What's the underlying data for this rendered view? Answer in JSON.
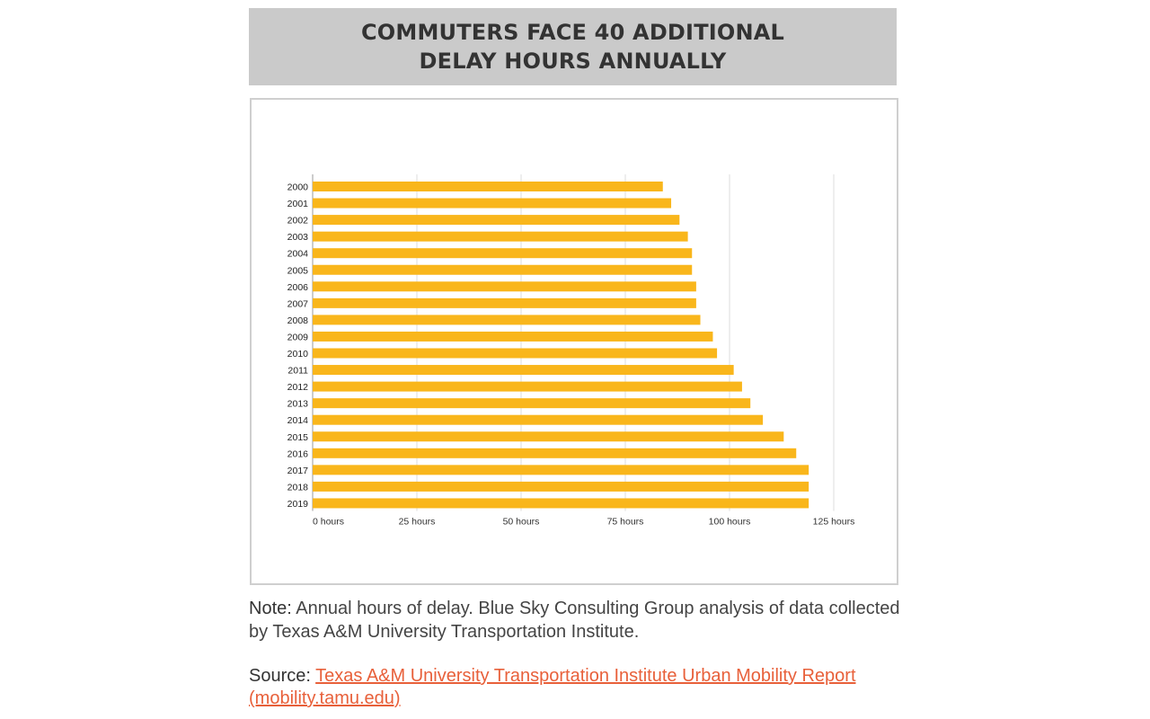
{
  "header": {
    "title_line1": "COMMUTERS FACE 40 ADDITIONAL",
    "title_line2": "DELAY HOURS ANNUALLY"
  },
  "note": {
    "label": "Note:",
    "text": "Annual hours of delay. Blue Sky Consulting Group analysis of data collected by Texas A&M University Transportation Institute."
  },
  "source": {
    "label": "Source:",
    "link_line1": "Texas A&M University Transportation Institute Urban Mobility Report ",
    "link_line2": "(mobility.tamu.edu)"
  },
  "colors": {
    "bar": "#f9b61b",
    "grid": "#dddddd",
    "axis": "#999999",
    "title_band": "#cacaca",
    "link": "#e8603a"
  },
  "chart_data": {
    "type": "bar",
    "orientation": "horizontal",
    "categories": [
      "2000",
      "2001",
      "2002",
      "2003",
      "2004",
      "2005",
      "2006",
      "2007",
      "2008",
      "2009",
      "2010",
      "2011",
      "2012",
      "2013",
      "2014",
      "2015",
      "2016",
      "2017",
      "2018",
      "2019"
    ],
    "values": [
      84,
      86,
      88,
      90,
      91,
      91,
      92,
      92,
      93,
      96,
      97,
      101,
      103,
      105,
      108,
      113,
      116,
      119,
      119,
      119
    ],
    "xlim": [
      0,
      125
    ],
    "xticks": [
      0,
      25,
      50,
      75,
      100,
      125
    ],
    "xtick_labels": [
      "0 hours",
      "25 hours",
      "50 hours",
      "75 hours",
      "100 hours",
      "125 hours"
    ],
    "grid": "vertical",
    "legend": "none"
  }
}
